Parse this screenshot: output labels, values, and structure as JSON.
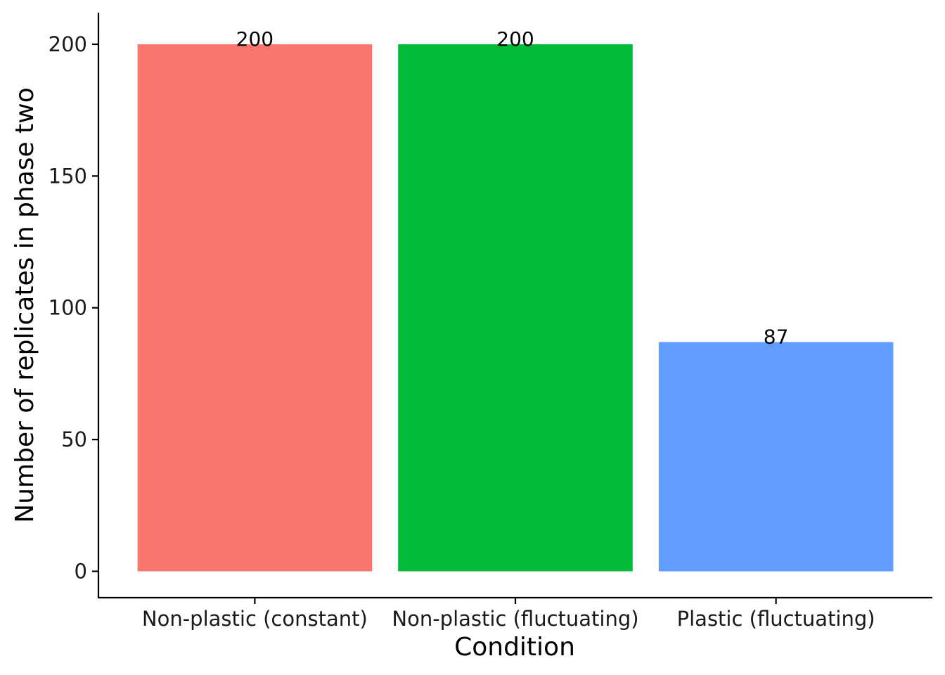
{
  "chart_data": {
    "type": "bar",
    "categories": [
      "Non-plastic (constant)",
      "Non-plastic (fluctuating)",
      "Plastic (fluctuating)"
    ],
    "values": [
      200,
      200,
      87
    ],
    "data_labels": [
      "200",
      "200",
      "87"
    ],
    "colors": [
      "#F8766D",
      "#00BA38",
      "#619CFF"
    ],
    "title": "",
    "xlabel": "Condition",
    "ylabel": "Number of replicates in phase two",
    "ylim": [
      -10,
      212
    ],
    "yticks": [
      0,
      50,
      100,
      150,
      200
    ],
    "grid": false,
    "legend": "none"
  }
}
